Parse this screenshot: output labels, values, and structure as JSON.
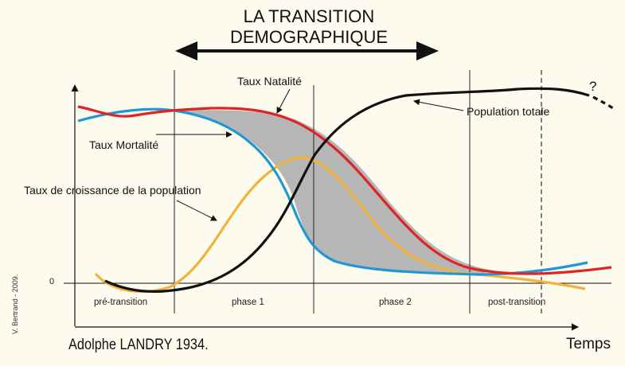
{
  "title": "LA TRANSITION DEMOGRAPHIQUE",
  "labels": {
    "natalite": "Taux Natalité",
    "mortalite": "Taux Mortalité",
    "croissance": "Taux de croissance de la population",
    "population": "Population totale",
    "question": "?",
    "zero": "0"
  },
  "phases": [
    "pré-transition",
    "phase 1",
    "phase 2",
    "post-transition"
  ],
  "axis": {
    "x_label": "Temps"
  },
  "author": "Adolphe LANDRY 1934.",
  "credit": "V. Bertrand - 2009.",
  "colors": {
    "natalite": "#e02424",
    "mortalite": "#1f97d4",
    "croissance": "#f2b33a",
    "population": "#111111",
    "gap_fill": "#b6b6b6",
    "background": "#fdfaee"
  }
}
